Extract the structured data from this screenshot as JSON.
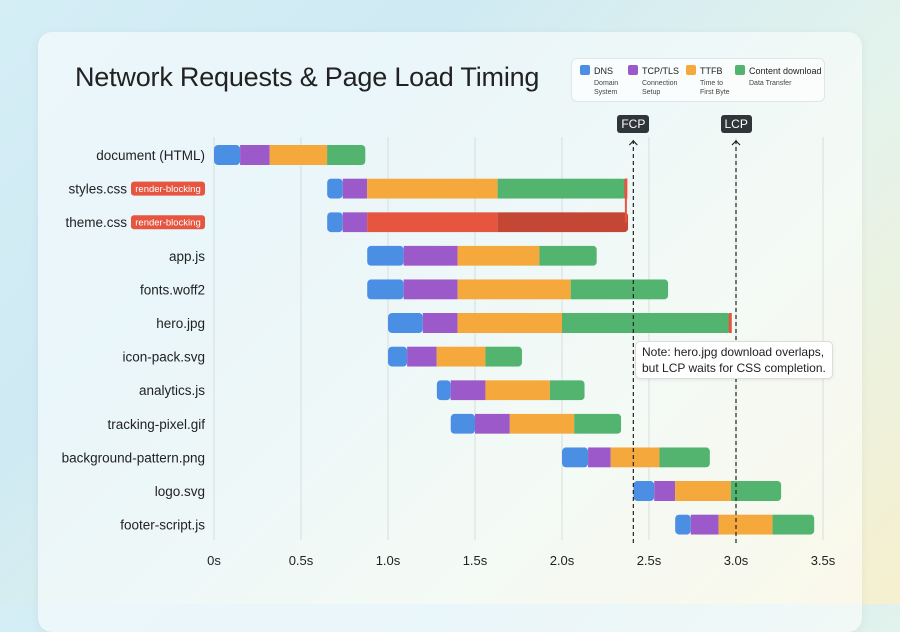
{
  "chart_data": {
    "type": "bar",
    "subtype": "stacked-horizontal-waterfall",
    "title": "Network Requests & Page Load Timing",
    "xlim": [
      0,
      3.5
    ],
    "x_ticks": [
      "0s",
      "0.5s",
      "1.0s",
      "1.5s",
      "2.0s",
      "2.5s",
      "3.0s",
      "3.5s"
    ],
    "x_tick_values": [
      0,
      0.5,
      1.0,
      1.5,
      2.0,
      2.5,
      3.0,
      3.5
    ],
    "grid": true,
    "legend_position": "top-right",
    "legend": [
      {
        "name": "DNS",
        "sub": "Domain System",
        "color": "#4a8fe3"
      },
      {
        "name": "TCP/TLS",
        "sub": "Connection Setup",
        "color": "#9b59c9"
      },
      {
        "name": "TTFB",
        "sub": "Time to First Byte",
        "color": "#f5a83c"
      },
      {
        "name": "Content download",
        "sub": "Data Transfer",
        "color": "#52b46e"
      }
    ],
    "highlight_colors": {
      "ttfb": "#e5553f",
      "download": "#c44634",
      "marker": "#e5553f"
    },
    "badge_label": "render-blocking",
    "rows": [
      {
        "name": "document (HTML)",
        "t": [
          0,
          0.15,
          0.32,
          0.65,
          0.87
        ]
      },
      {
        "name": "styles.css",
        "badge": true,
        "end_marker": true,
        "t": [
          0.65,
          0.74,
          0.88,
          1.63,
          2.37
        ]
      },
      {
        "name": "theme.css",
        "badge": true,
        "highlight": true,
        "t": [
          0.65,
          0.74,
          0.88,
          1.63,
          2.38
        ]
      },
      {
        "name": "app.js",
        "t": [
          0.88,
          1.09,
          1.4,
          1.87,
          2.2
        ]
      },
      {
        "name": "fonts.woff2",
        "t": [
          0.88,
          1.09,
          1.4,
          2.05,
          2.61
        ]
      },
      {
        "name": "hero.jpg",
        "end_marker": true,
        "t": [
          1.0,
          1.2,
          1.4,
          2.0,
          2.97
        ]
      },
      {
        "name": "icon-pack.svg",
        "t": [
          1.0,
          1.11,
          1.28,
          1.56,
          1.77
        ]
      },
      {
        "name": "analytics.js",
        "t": [
          1.28,
          1.36,
          1.56,
          1.93,
          2.13
        ]
      },
      {
        "name": "tracking-pixel.gif",
        "t": [
          1.36,
          1.5,
          1.7,
          2.07,
          2.34
        ]
      },
      {
        "name": "background-pattern.png",
        "t": [
          2.0,
          2.15,
          2.28,
          2.56,
          2.85
        ]
      },
      {
        "name": "logo.svg",
        "t": [
          2.41,
          2.53,
          2.65,
          2.97,
          3.26
        ]
      },
      {
        "name": "footer-script.js",
        "t": [
          2.65,
          2.74,
          2.9,
          3.21,
          3.45
        ]
      }
    ],
    "markers": [
      {
        "label": "FCP",
        "value": 2.41
      },
      {
        "label": "LCP",
        "value": 3.0
      }
    ],
    "annotation": {
      "line1": "Note: hero.jpg download overlaps,",
      "line2": "but LCP waits for CSS completion."
    }
  }
}
